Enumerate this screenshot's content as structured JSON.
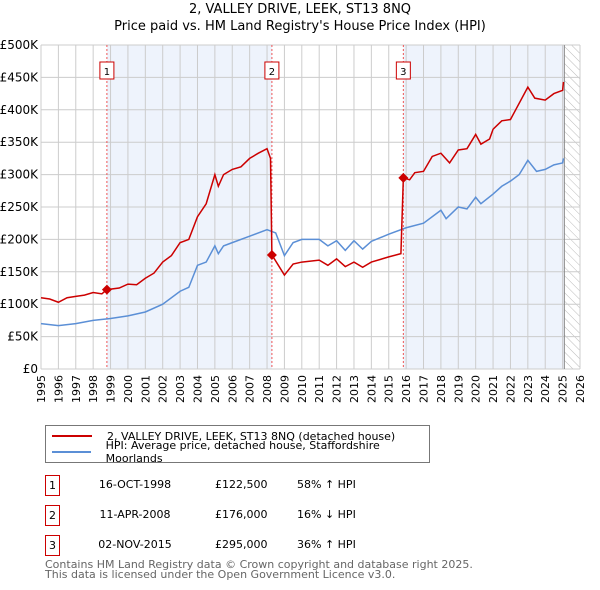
{
  "chart_data": {
    "type": "line",
    "title": "2, VALLEY DRIVE, LEEK, ST13 8NQ",
    "subtitle": "Price paid vs. HM Land Registry's House Price Index (HPI)",
    "xlim": [
      1995,
      2026
    ],
    "ylim": [
      0,
      500000
    ],
    "x_ticks": [
      "1995",
      "1996",
      "1997",
      "1998",
      "1999",
      "2000",
      "2001",
      "2002",
      "2003",
      "2004",
      "2005",
      "2006",
      "2007",
      "2008",
      "2009",
      "2010",
      "2011",
      "2012",
      "2013",
      "2014",
      "2015",
      "2016",
      "2017",
      "2018",
      "2019",
      "2020",
      "2021",
      "2022",
      "2023",
      "2024",
      "2025",
      "2026"
    ],
    "y_ticks": [
      {
        "v": 0,
        "l": "£0"
      },
      {
        "v": 50000,
        "l": "£50K"
      },
      {
        "v": 100000,
        "l": "£100K"
      },
      {
        "v": 150000,
        "l": "£150K"
      },
      {
        "v": 200000,
        "l": "£200K"
      },
      {
        "v": 250000,
        "l": "£250K"
      },
      {
        "v": 300000,
        "l": "£300K"
      },
      {
        "v": 350000,
        "l": "£350K"
      },
      {
        "v": 400000,
        "l": "£400K"
      },
      {
        "v": 450000,
        "l": "£450K"
      },
      {
        "v": 500000,
        "l": "£500K"
      }
    ],
    "grid": true,
    "forecast_hatch_from": 2025.1,
    "series": [
      {
        "name": "2, VALLEY DRIVE, LEEK, ST13 8NQ (detached house)",
        "color": "#cc0000",
        "x": [
          1995,
          1995.5,
          1996,
          1996.5,
          1997,
          1997.5,
          1998,
          1998.5,
          1998.79,
          1999.5,
          2000,
          2000.5,
          2001,
          2001.5,
          2002,
          2002.5,
          2003,
          2003.5,
          2004,
          2004.5,
          2005,
          2005.2,
          2005.5,
          2006,
          2006.5,
          2007,
          2007.5,
          2008,
          2008.2,
          2008.28,
          2009,
          2009.5,
          2010,
          2011,
          2011.5,
          2012,
          2012.5,
          2013,
          2013.5,
          2014,
          2015,
          2015.7,
          2015.84,
          2016.2,
          2016.5,
          2017,
          2017.5,
          2018,
          2018.5,
          2019,
          2019.5,
          2020,
          2020.3,
          2020.8,
          2021,
          2021.5,
          2022,
          2022.3,
          2022.8,
          2023,
          2023.4,
          2024,
          2024.5,
          2025,
          2025.05
        ],
        "y": [
          110000,
          108000,
          103000,
          110000,
          112000,
          114000,
          118000,
          116000,
          122500,
          125000,
          131000,
          130000,
          140000,
          148000,
          165000,
          175000,
          195000,
          200000,
          235000,
          255000,
          300000,
          282000,
          300000,
          308000,
          312000,
          325000,
          333000,
          340000,
          325000,
          176000,
          145000,
          162000,
          165000,
          168000,
          160000,
          170000,
          158000,
          165000,
          157000,
          165000,
          173000,
          178000,
          295000,
          292000,
          303000,
          305000,
          328000,
          333000,
          318000,
          338000,
          340000,
          362000,
          347000,
          355000,
          370000,
          383000,
          385000,
          400000,
          425000,
          435000,
          418000,
          415000,
          425000,
          430000,
          443000
        ]
      },
      {
        "name": "HPI: Average price, detached house, Staffordshire Moorlands",
        "color": "#5b8fd6",
        "x": [
          1995,
          1996,
          1997,
          1998,
          1999,
          2000,
          2001,
          2002,
          2003,
          2003.5,
          2004,
          2004.5,
          2005,
          2005.2,
          2005.5,
          2006,
          2007,
          2008,
          2008.5,
          2009,
          2009.5,
          2010,
          2011,
          2011.5,
          2012,
          2012.5,
          2013,
          2013.5,
          2014,
          2015,
          2016,
          2017,
          2018,
          2018.3,
          2019,
          2019.5,
          2020,
          2020.3,
          2021,
          2021.5,
          2022,
          2022.5,
          2023,
          2023.5,
          2024,
          2024.5,
          2025,
          2025.05
        ],
        "y": [
          70000,
          67000,
          70000,
          75000,
          78000,
          82000,
          88000,
          100000,
          120000,
          126000,
          160000,
          165000,
          190000,
          178000,
          190000,
          195000,
          205000,
          215000,
          210000,
          175000,
          195000,
          200000,
          200000,
          190000,
          198000,
          183000,
          198000,
          185000,
          197000,
          208000,
          218000,
          225000,
          245000,
          232000,
          250000,
          247000,
          265000,
          255000,
          270000,
          282000,
          290000,
          300000,
          322000,
          305000,
          308000,
          315000,
          318000,
          325000
        ]
      }
    ],
    "sales": [
      {
        "n": "1",
        "x": 1998.79,
        "y": 122500,
        "date": "16-OCT-1998",
        "price": "£122,500",
        "hpi": "58% ↑ HPI"
      },
      {
        "n": "2",
        "x": 2008.28,
        "y": 176000,
        "date": "11-APR-2008",
        "price": "£176,000",
        "hpi": "16% ↓ HPI"
      },
      {
        "n": "3",
        "x": 2015.84,
        "y": 295000,
        "date": "02-NOV-2015",
        "price": "£295,000",
        "hpi": "36% ↑ HPI"
      }
    ]
  },
  "footer": {
    "line1": "Contains HM Land Registry data © Crown copyright and database right 2025.",
    "line2": "This data is licensed under the Open Government Licence v3.0."
  }
}
